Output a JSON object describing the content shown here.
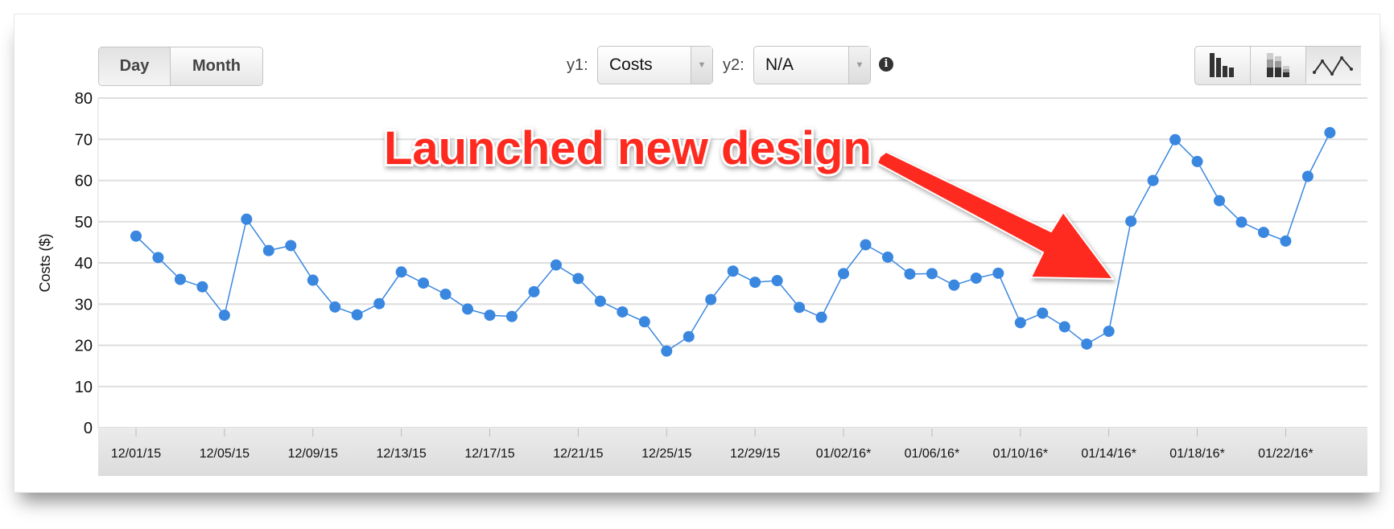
{
  "toolbar": {
    "granularity": [
      {
        "label": "Day",
        "active": true
      },
      {
        "label": "Month",
        "active": false
      }
    ],
    "y1_label": "y1:",
    "y1_value": "Costs",
    "y2_label": "y2:",
    "y2_value": "N/A",
    "info_icon": "info-circle-icon",
    "chart_types": [
      {
        "icon": "bar-chart-icon",
        "active": false
      },
      {
        "icon": "stacked-bar-chart-icon",
        "active": false
      },
      {
        "icon": "line-chart-icon",
        "active": true
      }
    ]
  },
  "annotation": {
    "text": "Launched new design",
    "color": "#ff2a1f"
  },
  "chart_data": {
    "type": "line",
    "ylabel": "Costs ($)",
    "xlabel": "",
    "ylim": [
      0,
      80
    ],
    "yticks": [
      0,
      10,
      20,
      30,
      40,
      50,
      60,
      70,
      80
    ],
    "grid": true,
    "series_color": "#3a87e0",
    "x_tick_labels": [
      "12/01/15",
      "12/05/15",
      "12/09/15",
      "12/13/15",
      "12/17/15",
      "12/21/15",
      "12/25/15",
      "12/29/15",
      "01/02/16*",
      "01/06/16*",
      "01/10/16*",
      "01/14/16*",
      "01/18/16*",
      "01/22/16*"
    ],
    "x_start": "12/01/15",
    "x_end": "01/24/16",
    "values": [
      46.5,
      41.3,
      36.0,
      34.2,
      27.3,
      50.6,
      43.0,
      44.2,
      35.8,
      29.3,
      27.4,
      30.1,
      37.8,
      35.1,
      32.4,
      28.8,
      27.3,
      27.0,
      33.0,
      39.5,
      36.2,
      30.7,
      28.1,
      25.7,
      18.6,
      22.1,
      31.1,
      38.0,
      35.3,
      35.7,
      29.2,
      26.8,
      37.4,
      44.4,
      41.4,
      37.3,
      37.4,
      34.6,
      36.3,
      37.5,
      25.5,
      27.8,
      24.5,
      20.3,
      23.4,
      50.1,
      60.0,
      69.9,
      64.6,
      55.1,
      49.9,
      47.4,
      45.3,
      61.0,
      71.6
    ]
  }
}
